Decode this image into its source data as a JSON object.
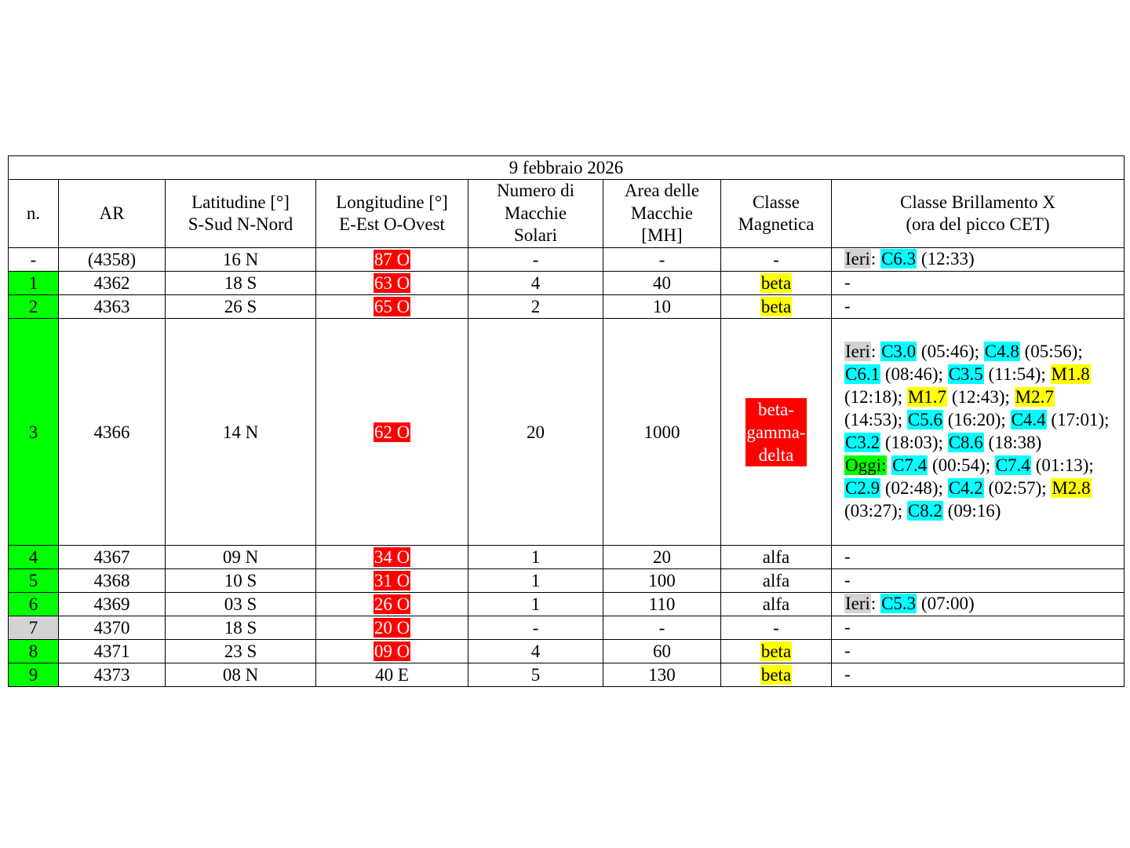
{
  "title": "9 febbraio 2026",
  "colors": {
    "green": "#00ff00",
    "grey": "#d3d3d3",
    "red": "#ff0000",
    "yellow": "#ffff00",
    "cyan": "#00ffff"
  },
  "headers": [
    "n.",
    "AR",
    "Latitudine [°]\nS-Sud N-Nord",
    "Longitudine [°]\nE-Est O-Ovest",
    "Numero di\nMacchie\nSolari",
    "Area delle\nMacchie\n[MH]",
    "Classe\nMagnetica",
    "Classe Brillamento X\n(ora del picco CET)"
  ],
  "rows": [
    {
      "n": "-",
      "n_hl": null,
      "ar": "(4358)",
      "lat": "16 N",
      "lon": "87 O",
      "lon_hl": "red",
      "num": "-",
      "area": "-",
      "mag": "-",
      "mag_hl": null,
      "flares": [
        {
          "t": "Ieri",
          "hl": "grey"
        },
        {
          "t": ": "
        },
        {
          "t": "C6.3",
          "hl": "cyan"
        },
        {
          "t": " (12:33)"
        }
      ]
    },
    {
      "n": "1",
      "n_hl": "green",
      "ar": "4362",
      "lat": "18 S",
      "lon": "63 O",
      "lon_hl": "red",
      "num": "4",
      "area": "40",
      "mag": "beta",
      "mag_hl": "yellow",
      "flares": [
        {
          "t": "-"
        }
      ]
    },
    {
      "n": "2",
      "n_hl": "green",
      "ar": "4363",
      "lat": "26 S",
      "lon": "65 O",
      "lon_hl": "red",
      "num": "2",
      "area": "10",
      "mag": "beta",
      "mag_hl": "yellow",
      "flares": [
        {
          "t": "-"
        }
      ]
    },
    {
      "n": "3",
      "n_hl": "green",
      "ar": "4366",
      "lat": "14 N",
      "lon": "62 O",
      "lon_hl": "red",
      "num": "20",
      "area": "1000",
      "mag": "beta-gamma-delta",
      "mag_hl": "red",
      "flares": [
        {
          "t": "Ieri",
          "hl": "grey"
        },
        {
          "t": ": "
        },
        {
          "t": "C3.0",
          "hl": "cyan"
        },
        {
          "t": " (05:46); "
        },
        {
          "t": "C4.8",
          "hl": "cyan"
        },
        {
          "t": " (05:56); "
        },
        {
          "t": "C6.1",
          "hl": "cyan"
        },
        {
          "t": " (08:46); "
        },
        {
          "t": "C3.5",
          "hl": "cyan"
        },
        {
          "t": " (11:54); "
        },
        {
          "t": "M1.8",
          "hl": "yellow"
        },
        {
          "t": " (12:18); "
        },
        {
          "t": "M1.7",
          "hl": "yellow"
        },
        {
          "t": " (12:43); "
        },
        {
          "t": "M2.7",
          "hl": "yellow"
        },
        {
          "t": " (14:53); "
        },
        {
          "t": "C5.6",
          "hl": "cyan"
        },
        {
          "t": " (16:20); "
        },
        {
          "t": "C4.4",
          "hl": "cyan"
        },
        {
          "t": " (17:01); "
        },
        {
          "t": "C3.2",
          "hl": "cyan"
        },
        {
          "t": " (18:03); "
        },
        {
          "t": "C8.6",
          "hl": "cyan"
        },
        {
          "t": " (18:38)"
        },
        {
          "br": true
        },
        {
          "t": "Oggi:",
          "hl": "green"
        },
        {
          "t": " "
        },
        {
          "t": "C7.4",
          "hl": "cyan"
        },
        {
          "t": " (00:54); "
        },
        {
          "t": "C7.4",
          "hl": "cyan"
        },
        {
          "t": " (01:13); "
        },
        {
          "t": "C2.9",
          "hl": "cyan"
        },
        {
          "t": " (02:48); "
        },
        {
          "t": "C4.2",
          "hl": "cyan"
        },
        {
          "t": " (02:57); "
        },
        {
          "t": "M2.8",
          "hl": "yellow"
        },
        {
          "t": " (03:27); "
        },
        {
          "t": "C8.2",
          "hl": "cyan"
        },
        {
          "t": " (09:16)"
        }
      ]
    },
    {
      "n": "4",
      "n_hl": "green",
      "ar": "4367",
      "lat": "09 N",
      "lon": "34 O",
      "lon_hl": "red",
      "num": "1",
      "area": "20",
      "mag": "alfa",
      "mag_hl": null,
      "flares": [
        {
          "t": "-"
        }
      ]
    },
    {
      "n": "5",
      "n_hl": "green",
      "ar": "4368",
      "lat": "10 S",
      "lon": "31 O",
      "lon_hl": "red",
      "num": "1",
      "area": "100",
      "mag": "alfa",
      "mag_hl": null,
      "flares": [
        {
          "t": "-"
        }
      ]
    },
    {
      "n": "6",
      "n_hl": "green",
      "ar": "4369",
      "lat": "03 S",
      "lon": "26 O",
      "lon_hl": "red",
      "num": "1",
      "area": "110",
      "mag": "alfa",
      "mag_hl": null,
      "flares": [
        {
          "t": "Ieri",
          "hl": "grey"
        },
        {
          "t": ": "
        },
        {
          "t": "C5.3",
          "hl": "cyan"
        },
        {
          "t": " (07:00)"
        }
      ]
    },
    {
      "n": "7",
      "n_hl": "grey",
      "ar": "4370",
      "lat": "18 S",
      "lon": "20 O",
      "lon_hl": "red",
      "num": "-",
      "area": "-",
      "mag": "-",
      "mag_hl": null,
      "flares": [
        {
          "t": "-"
        }
      ]
    },
    {
      "n": "8",
      "n_hl": "green",
      "ar": "4371",
      "lat": "23 S",
      "lon": "09 O",
      "lon_hl": "red",
      "num": "4",
      "area": "60",
      "mag": "beta",
      "mag_hl": "yellow",
      "flares": [
        {
          "t": "-"
        }
      ]
    },
    {
      "n": "9",
      "n_hl": "green",
      "ar": "4373",
      "lat": "08 N",
      "lon": "40 E",
      "lon_hl": null,
      "num": "5",
      "area": "130",
      "mag": "beta",
      "mag_hl": "yellow",
      "flares": [
        {
          "t": "-"
        }
      ]
    }
  ]
}
